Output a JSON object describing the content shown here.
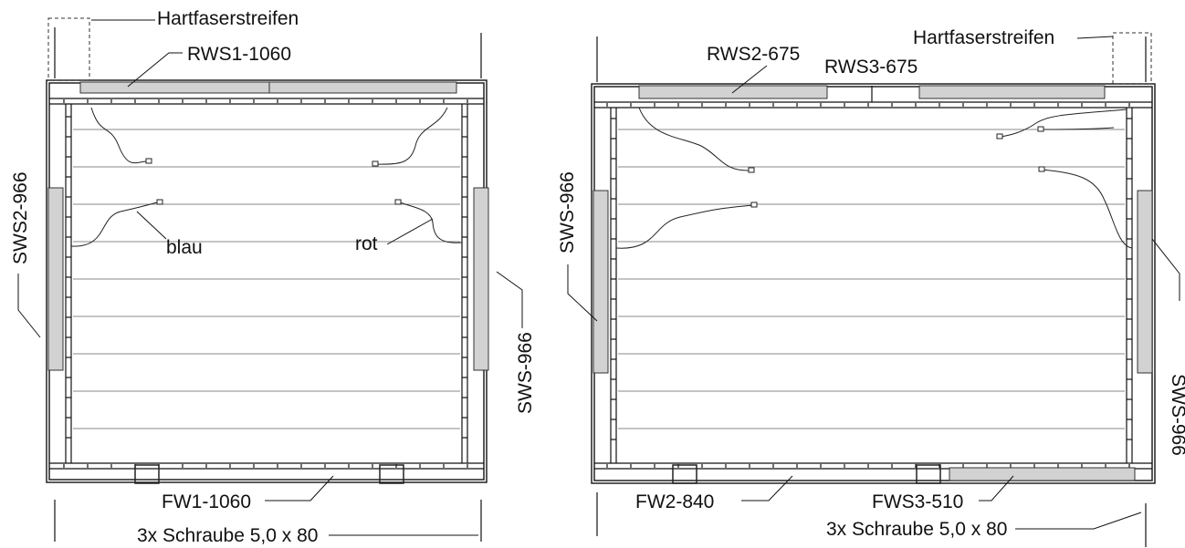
{
  "left": {
    "hartfaser": "Hartfaserstreifen",
    "rws1": "RWS1-1060",
    "sws2": "SWS2-966",
    "sws": "SWS-966",
    "blau": "blau",
    "rot": "rot",
    "fw1": "FW1-1060",
    "schraube": "3x Schraube 5,0 x 80"
  },
  "right": {
    "hartfaser": "Hartfaserstreifen",
    "rws2": "RWS2-675",
    "rws3": "RWS3-675",
    "sws_left": "SWS-966",
    "sws_right": "SWS-966",
    "fw2": "FW2-840",
    "fws3": "FWS3-510",
    "schraube": "3x Schraube 5,0 x 80"
  }
}
